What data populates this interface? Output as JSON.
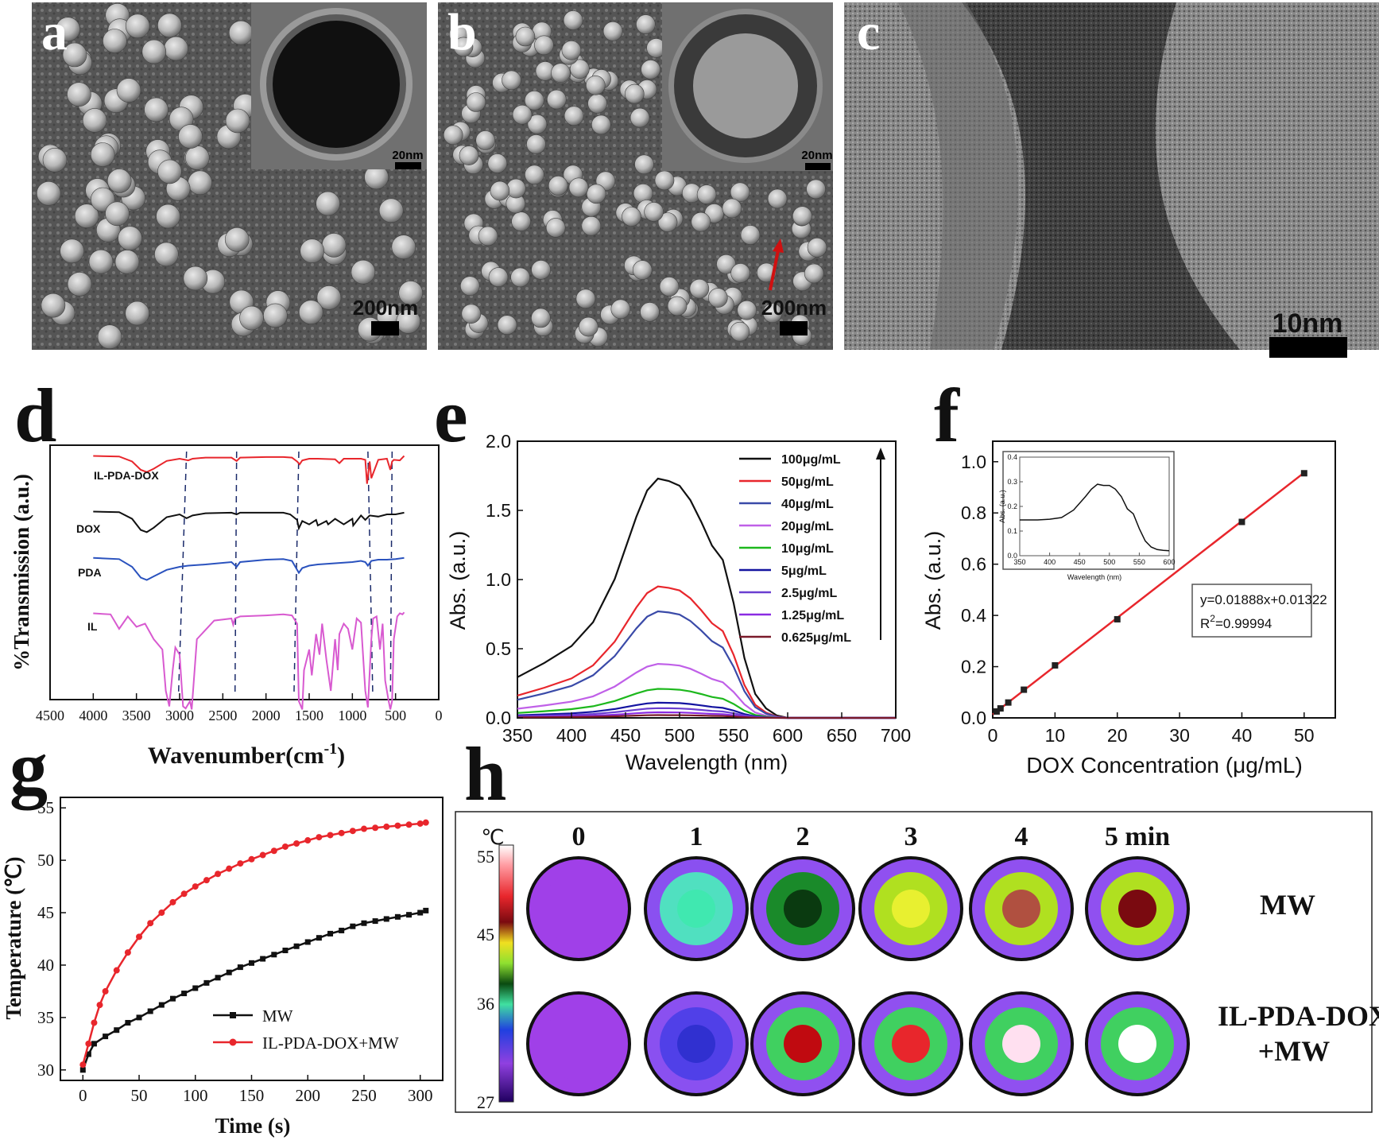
{
  "panels": {
    "a": {
      "letter": "a",
      "inset_scale": "20nm",
      "scale": "200nm"
    },
    "b": {
      "letter": "b",
      "inset_scale": "20nm",
      "scale": "200nm"
    },
    "c": {
      "letter": "c",
      "scale": "10nm"
    },
    "d": {
      "letter": "d"
    },
    "e": {
      "letter": "e"
    },
    "f": {
      "letter": "f"
    },
    "g": {
      "letter": "g"
    },
    "h": {
      "letter": "h"
    }
  },
  "colors": {
    "black": "#111111",
    "red": "#e8262c",
    "blue": "#2a52be",
    "pink": "#d85ad0",
    "green": "#1db81d",
    "navy": "#1414a0",
    "purple": "#6a3fd0",
    "violet": "#8b2be2",
    "maroon": "#7a1a2a",
    "indigo": "#4a3cc8"
  },
  "chart_data": [
    {
      "id": "d",
      "type": "line",
      "xlabel": "Wavenumber(cm-1)",
      "ylabel": "%Transmission (a.u.)",
      "xlim": [
        4500,
        0
      ],
      "xticks": [
        4500,
        4000,
        3500,
        3000,
        2500,
        2000,
        1500,
        1000,
        500,
        0
      ],
      "dashed_lines_at": [
        2920,
        2340,
        1620,
        820,
        540
      ],
      "series": [
        {
          "name": "IL-PDA-DOX",
          "color": "#e8262c",
          "x": [
            4000,
            3700,
            3550,
            3450,
            3380,
            3300,
            3150,
            3000,
            2900,
            2850,
            2700,
            2400,
            2340,
            2300,
            2000,
            1800,
            1700,
            1640,
            1610,
            1580,
            1500,
            1400,
            1200,
            1150,
            1100,
            900,
            850,
            830,
            800,
            780,
            700,
            600,
            560,
            540,
            520,
            450,
            400
          ],
          "y": [
            0.95,
            0.94,
            0.85,
            0.7,
            0.66,
            0.72,
            0.86,
            0.9,
            0.87,
            0.9,
            0.92,
            0.92,
            0.86,
            0.92,
            0.93,
            0.93,
            0.92,
            0.85,
            0.8,
            0.87,
            0.9,
            0.9,
            0.89,
            0.82,
            0.9,
            0.9,
            0.88,
            0.45,
            0.85,
            0.55,
            0.88,
            0.9,
            0.7,
            0.85,
            0.88,
            0.87,
            0.95
          ]
        },
        {
          "name": "DOX",
          "color": "#111111",
          "x": [
            4000,
            3700,
            3550,
            3450,
            3380,
            3300,
            3150,
            3000,
            2920,
            2850,
            2700,
            2400,
            2340,
            2300,
            2000,
            1800,
            1720,
            1640,
            1620,
            1580,
            1500,
            1420,
            1400,
            1300,
            1280,
            1200,
            1100,
            1000,
            990,
            900,
            850,
            800,
            700,
            600,
            500,
            400
          ],
          "y": [
            0.95,
            0.94,
            0.82,
            0.62,
            0.58,
            0.66,
            0.85,
            0.9,
            0.83,
            0.88,
            0.92,
            0.93,
            0.9,
            0.93,
            0.93,
            0.93,
            0.9,
            0.8,
            0.65,
            0.78,
            0.72,
            0.8,
            0.7,
            0.78,
            0.72,
            0.82,
            0.72,
            0.82,
            0.7,
            0.88,
            0.8,
            0.88,
            0.86,
            0.9,
            0.9,
            0.93
          ]
        },
        {
          "name": "PDA",
          "color": "#2a52be",
          "x": [
            4000,
            3700,
            3550,
            3450,
            3380,
            3300,
            3150,
            3000,
            2900,
            2700,
            2400,
            2340,
            2300,
            2000,
            1800,
            1700,
            1620,
            1580,
            1500,
            1400,
            1200,
            1000,
            900,
            850,
            820,
            780,
            700,
            600,
            500,
            400
          ],
          "y": [
            0.95,
            0.93,
            0.8,
            0.62,
            0.58,
            0.64,
            0.75,
            0.8,
            0.82,
            0.84,
            0.88,
            0.8,
            0.88,
            0.92,
            0.93,
            0.9,
            0.7,
            0.78,
            0.82,
            0.84,
            0.86,
            0.88,
            0.9,
            0.88,
            0.82,
            0.9,
            0.92,
            0.92,
            0.93,
            0.95
          ]
        },
        {
          "name": "IL",
          "color": "#d85ad0",
          "x": [
            4000,
            3800,
            3700,
            3600,
            3500,
            3400,
            3300,
            3200,
            3160,
            3120,
            3080,
            3050,
            3000,
            2960,
            2930,
            2880,
            2860,
            2800,
            2600,
            2400,
            2380,
            2360,
            2300,
            2000,
            1800,
            1700,
            1640,
            1620,
            1580,
            1560,
            1500,
            1470,
            1420,
            1380,
            1350,
            1300,
            1250,
            1200,
            1170,
            1150,
            1100,
            1050,
            1000,
            950,
            900,
            850,
            820,
            780,
            760,
            720,
            680,
            650,
            620,
            580,
            560,
            540,
            520,
            480,
            450,
            420,
            400
          ],
          "y": [
            0.95,
            0.94,
            0.8,
            0.92,
            0.82,
            0.85,
            0.7,
            0.6,
            0.2,
            0.05,
            0.4,
            0.62,
            0.55,
            0.05,
            0.03,
            0.1,
            0.02,
            0.7,
            0.88,
            0.9,
            0.84,
            0.9,
            0.92,
            0.93,
            0.94,
            0.93,
            0.85,
            0.1,
            0.02,
            0.4,
            0.6,
            0.35,
            0.75,
            0.55,
            0.85,
            0.5,
            0.2,
            0.7,
            0.4,
            0.75,
            0.85,
            0.8,
            0.6,
            0.9,
            0.86,
            0.2,
            0.04,
            0.7,
            0.9,
            0.92,
            0.6,
            0.85,
            0.3,
            0.1,
            0.02,
            0.1,
            0.7,
            0.92,
            0.95,
            0.94,
            0.96
          ]
        }
      ]
    },
    {
      "id": "e",
      "type": "line",
      "xlabel": "Wavelength (nm)",
      "ylabel": "Abs. (a.u.)",
      "xlim": [
        350,
        700
      ],
      "ylim": [
        0,
        2.0
      ],
      "xticks": [
        350,
        400,
        450,
        500,
        550,
        600,
        650,
        700
      ],
      "yticks": [
        0.0,
        0.5,
        1.0,
        1.5,
        2.0
      ],
      "ytick_labels": [
        "0.0",
        "0.5",
        "1.0",
        "1.5",
        "2.0"
      ],
      "shape": {
        "x": [
          350,
          375,
          400,
          420,
          440,
          460,
          470,
          480,
          490,
          500,
          510,
          520,
          530,
          540,
          550,
          560,
          570,
          580,
          590,
          600
        ],
        "y": [
          0.17,
          0.23,
          0.3,
          0.4,
          0.58,
          0.84,
          0.95,
          1.0,
          0.99,
          0.97,
          0.91,
          0.82,
          0.72,
          0.66,
          0.48,
          0.25,
          0.1,
          0.04,
          0.01,
          0.0
        ]
      },
      "series": [
        {
          "name": "100μg/mL",
          "color": "#111111",
          "peak": 1.73
        },
        {
          "name": "50μg/mL",
          "color": "#e8262c",
          "peak": 0.95
        },
        {
          "name": "40μg/mL",
          "color": "#3a4aa8",
          "peak": 0.77
        },
        {
          "name": "20μg/mL",
          "color": "#c060e8",
          "peak": 0.39
        },
        {
          "name": "10μg/mL",
          "color": "#1db81d",
          "peak": 0.21
        },
        {
          "name": "5μg/mL",
          "color": "#1414a0",
          "peak": 0.11
        },
        {
          "name": "2.5μg/mL",
          "color": "#6a3fd0",
          "peak": 0.07
        },
        {
          "name": "1.25μg/mL",
          "color": "#8b2be2",
          "peak": 0.04
        },
        {
          "name": "0.625μg/mL",
          "color": "#7a1a2a",
          "peak": 0.02
        }
      ]
    },
    {
      "id": "f",
      "type": "scatter",
      "xlabel": "DOX Concentration (μg/mL)",
      "ylabel": "Abs. (a.u.)",
      "xlim": [
        0,
        55
      ],
      "ylim": [
        0,
        1.08
      ],
      "xticks": [
        0,
        10,
        20,
        30,
        40,
        50
      ],
      "yticks": [
        0.0,
        0.2,
        0.4,
        0.6,
        0.8,
        1.0
      ],
      "ytick_labels": [
        "0.0",
        "0.2",
        "0.4",
        "0.6",
        "0.8",
        "1.0"
      ],
      "x": [
        0.625,
        1.25,
        2.5,
        5,
        10,
        20,
        40,
        50
      ],
      "y": [
        0.025,
        0.037,
        0.06,
        0.11,
        0.205,
        0.385,
        0.765,
        0.955
      ],
      "fit": {
        "slope": 0.01888,
        "intercept": 0.01322,
        "equation": "y=0.01888x+0.01322",
        "r2_label": "R",
        "r2_sup": "2",
        "r2_value": "=0.99994"
      },
      "inset": {
        "xlabel": "Wavelength (nm)",
        "ylabel": "Abs. (a.u.)",
        "xlim": [
          350,
          600
        ],
        "ylim": [
          0,
          0.4
        ],
        "xticks": [
          350,
          400,
          450,
          500,
          550,
          600
        ],
        "yticks": [
          0.0,
          0.1,
          0.2,
          0.3,
          0.4
        ],
        "ytick_labels": [
          "0.0",
          "0.1",
          "0.2",
          "0.3",
          "0.4"
        ],
        "x": [
          350,
          380,
          400,
          420,
          440,
          460,
          470,
          480,
          490,
          500,
          510,
          520,
          530,
          540,
          550,
          560,
          570,
          580,
          590,
          600
        ],
        "y": [
          0.145,
          0.145,
          0.148,
          0.155,
          0.185,
          0.24,
          0.27,
          0.29,
          0.285,
          0.285,
          0.27,
          0.24,
          0.19,
          0.17,
          0.11,
          0.06,
          0.035,
          0.025,
          0.022,
          0.02
        ]
      }
    },
    {
      "id": "g",
      "type": "line",
      "xlabel": "Time (s)",
      "ylabel": "Temperature (℃)",
      "xlim": [
        -20,
        320
      ],
      "ylim": [
        29,
        56
      ],
      "xticks": [
        0,
        50,
        100,
        150,
        200,
        250,
        300
      ],
      "yticks": [
        30,
        35,
        40,
        45,
        50,
        55
      ],
      "series": [
        {
          "name": "MW",
          "color": "#111111",
          "x": [
            0,
            5,
            10,
            20,
            30,
            40,
            50,
            60,
            70,
            80,
            90,
            100,
            110,
            120,
            130,
            140,
            150,
            160,
            170,
            180,
            190,
            200,
            210,
            220,
            230,
            240,
            250,
            260,
            270,
            280,
            290,
            300,
            305
          ],
          "y": [
            30,
            31.5,
            32.5,
            33.2,
            33.8,
            34.5,
            35,
            35.6,
            36.2,
            36.8,
            37.3,
            37.8,
            38.3,
            38.8,
            39.3,
            39.8,
            40.2,
            40.6,
            41.0,
            41.4,
            41.8,
            42.2,
            42.6,
            43.0,
            43.3,
            43.7,
            44.0,
            44.2,
            44.4,
            44.6,
            44.8,
            45.0,
            45.2
          ]
        },
        {
          "name": "IL-PDA-DOX+MW",
          "color": "#e8262c",
          "x": [
            0,
            5,
            10,
            15,
            20,
            30,
            40,
            50,
            60,
            70,
            80,
            90,
            100,
            110,
            120,
            130,
            140,
            150,
            160,
            170,
            180,
            190,
            200,
            210,
            220,
            230,
            240,
            250,
            260,
            270,
            280,
            290,
            300,
            305
          ],
          "y": [
            30.5,
            32.5,
            34.5,
            36.2,
            37.5,
            39.5,
            41.2,
            42.7,
            44.0,
            45.0,
            46.0,
            46.8,
            47.5,
            48.1,
            48.7,
            49.2,
            49.7,
            50.1,
            50.5,
            50.9,
            51.3,
            51.6,
            51.9,
            52.2,
            52.4,
            52.6,
            52.8,
            53.0,
            53.1,
            53.2,
            53.3,
            53.4,
            53.5,
            53.6
          ]
        }
      ]
    }
  ],
  "thermal": {
    "unit": "℃",
    "scale_labels": [
      "55",
      "45",
      "36",
      "27"
    ],
    "times": [
      "0",
      "1",
      "2",
      "3",
      "4",
      "5 min"
    ],
    "rows": [
      {
        "label": "MW"
      },
      {
        "label": "IL-PDA-DOX",
        "label2": "+MW"
      }
    ]
  },
  "axis_labels": {
    "d_x_main": "Wavenumber(cm",
    "d_x_sup": "-1",
    "d_x_end": ")",
    "g_y": "Temperature (℃)"
  }
}
